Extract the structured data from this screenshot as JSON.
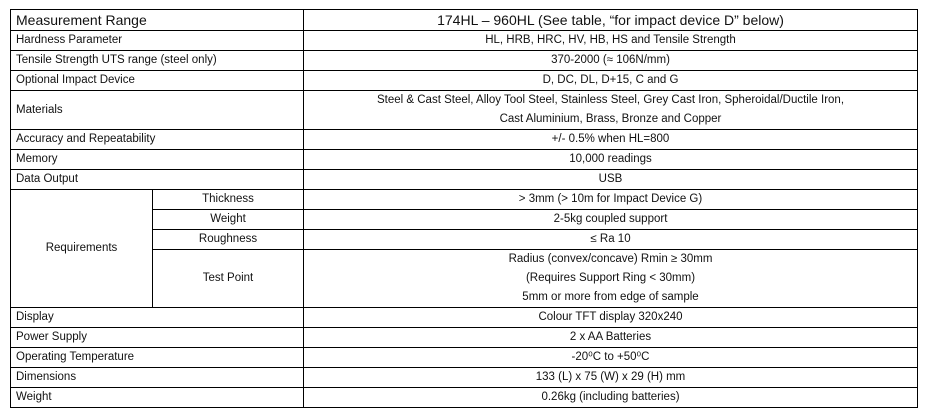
{
  "table": {
    "rows": [
      {
        "label": "Measurement Range",
        "value": "174HL – 960HL (See table, “for impact device D” below)"
      },
      {
        "label": "Hardness Parameter",
        "value": "HL, HRB, HRC, HV, HB, HS and Tensile Strength"
      },
      {
        "label": "Tensile Strength UTS range (steel only)",
        "value": "370-2000 (≈ 106N/mm)"
      },
      {
        "label": "Optional Impact Device",
        "value": "D, DC, DL, D+15, C and G"
      },
      {
        "label": "Materials",
        "lines": [
          "Steel & Cast Steel, Alloy Tool Steel, Stainless Steel, Grey Cast Iron, Spheroidal/Ductile Iron,",
          "Cast Aluminium, Brass, Bronze and Copper"
        ]
      },
      {
        "label": "Accuracy and Repeatability",
        "value": "+/- 0.5% when HL=800"
      },
      {
        "label": "Memory",
        "value": "10,000 readings"
      },
      {
        "label": "Data Output",
        "value": "USB"
      },
      {
        "label": "Requirements",
        "sub": [
          {
            "label": "Thickness",
            "value": "> 3mm (> 10m for Impact Device G)"
          },
          {
            "label": "Weight",
            "value": "2-5kg coupled support"
          },
          {
            "label": "Roughness",
            "value": "≤ Ra 10"
          },
          {
            "label": "Test Point",
            "lines": [
              "Radius (convex/concave) Rmin ≥ 30mm",
              "(Requires Support Ring < 30mm)",
              "5mm or more from edge of sample"
            ]
          }
        ]
      },
      {
        "label": "Display",
        "value": "Colour TFT display 320x240"
      },
      {
        "label": "Power Supply",
        "value": "2 x AA Batteries"
      },
      {
        "label": "Operating Temperature",
        "value": "-20⁰C to +50⁰C"
      },
      {
        "label": "Dimensions",
        "value": "133 (L) x 75 (W) x 29 (H) mm"
      },
      {
        "label": "Weight",
        "value": "0.26kg (including batteries)"
      }
    ]
  }
}
